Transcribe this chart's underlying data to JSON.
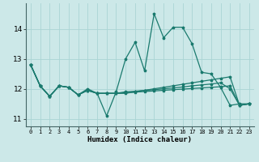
{
  "title": "",
  "xlabel": "Humidex (Indice chaleur)",
  "bg_color": "#cce8e8",
  "line_color": "#1a7a6e",
  "grid_color": "#aad4d4",
  "xlim": [
    -0.5,
    23.5
  ],
  "ylim": [
    10.75,
    14.85
  ],
  "yticks": [
    11,
    12,
    13,
    14
  ],
  "xticks": [
    0,
    1,
    2,
    3,
    4,
    5,
    6,
    7,
    8,
    9,
    10,
    11,
    12,
    13,
    14,
    15,
    16,
    17,
    18,
    19,
    20,
    21,
    22,
    23
  ],
  "x": [
    0,
    1,
    2,
    3,
    4,
    5,
    6,
    7,
    8,
    9,
    10,
    11,
    12,
    13,
    14,
    15,
    16,
    17,
    18,
    19,
    20,
    21,
    22,
    23
  ],
  "line_spiky": [
    12.8,
    12.1,
    11.75,
    12.1,
    12.05,
    11.8,
    12.0,
    11.85,
    11.1,
    11.9,
    13.0,
    13.55,
    12.6,
    14.5,
    13.7,
    14.05,
    14.05,
    13.5,
    12.55,
    12.5,
    12.05,
    11.45,
    11.5,
    11.5
  ],
  "line_flat1": [
    12.8,
    12.1,
    11.75,
    12.1,
    12.05,
    11.8,
    11.95,
    11.85,
    11.85,
    11.85,
    11.85,
    11.9,
    11.95,
    12.0,
    12.05,
    12.1,
    12.15,
    12.2,
    12.25,
    12.3,
    12.35,
    12.4,
    11.45,
    11.5
  ],
  "line_flat2": [
    12.8,
    12.1,
    11.75,
    12.1,
    12.05,
    11.8,
    11.95,
    11.85,
    11.85,
    11.85,
    11.9,
    11.92,
    11.95,
    11.97,
    12.0,
    12.03,
    12.06,
    12.1,
    12.13,
    12.16,
    12.2,
    12.0,
    11.45,
    11.5
  ],
  "line_flat3": [
    12.8,
    12.1,
    11.75,
    12.1,
    12.05,
    11.8,
    11.95,
    11.85,
    11.85,
    11.85,
    11.87,
    11.89,
    11.91,
    11.93,
    11.95,
    11.97,
    11.99,
    12.01,
    12.03,
    12.05,
    12.07,
    12.1,
    11.45,
    11.5
  ]
}
